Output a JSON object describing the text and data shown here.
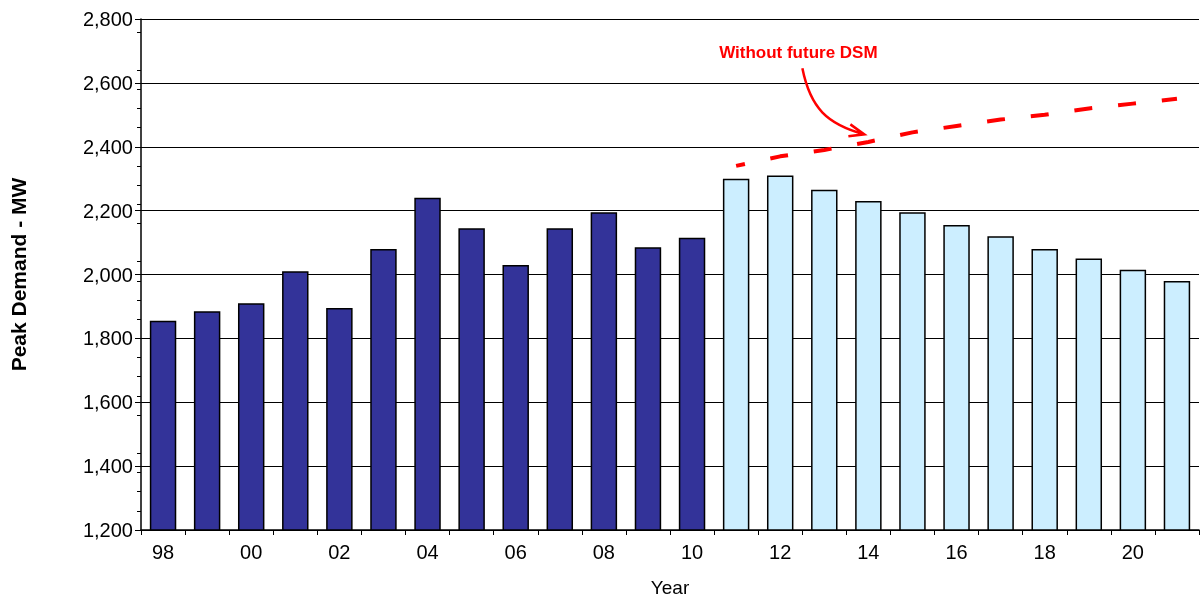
{
  "chart_data": {
    "type": "bar",
    "xlabel": "Year",
    "ylabel": "Peak Demand - MW",
    "categories": [
      "98",
      null,
      "00",
      null,
      "02",
      null,
      "04",
      null,
      "06",
      null,
      "08",
      null,
      "10",
      null,
      "12",
      null,
      "14",
      null,
      "16",
      null,
      "18",
      null,
      "20",
      null
    ],
    "series": [
      {
        "values": [
          1855,
          1885,
          1910,
          2010,
          1895,
          2080,
          2240,
          2145,
          2030,
          2145,
          2195,
          2085,
          2115,
          2300,
          2310,
          2265,
          2230,
          2195,
          2155,
          2120,
          2080,
          2050,
          2015,
          1980
        ],
        "colors": [
          "#333399",
          "#333399",
          "#333399",
          "#333399",
          "#333399",
          "#333399",
          "#333399",
          "#333399",
          "#333399",
          "#333399",
          "#333399",
          "#333399",
          "#333399",
          "#cceeff",
          "#cceeff",
          "#cceeff",
          "#cceeff",
          "#cceeff",
          "#cceeff",
          "#cceeff",
          "#cceeff",
          "#cceeff",
          "#cceeff",
          "#cceeff"
        ]
      },
      {
        "type": "line",
        "color": "#ff0000",
        "line_style": "dashed",
        "marker": "none",
        "values": [
          null,
          null,
          null,
          null,
          null,
          null,
          null,
          null,
          null,
          null,
          null,
          null,
          null,
          2340,
          2370,
          2390,
          2415,
          2445,
          2465,
          2485,
          2500,
          2520,
          2535,
          2550
        ]
      }
    ],
    "annotations": [
      {
        "text": "Without future DSM",
        "x": "14",
        "y": 2420
      }
    ],
    "ylim": [
      1200,
      2800
    ],
    "yticks": [
      {
        "value": 1200,
        "label": "1,200"
      },
      {
        "value": 1400,
        "label": "1,400"
      },
      {
        "value": 1600,
        "label": "1,600"
      },
      {
        "value": 1800,
        "label": "1,800"
      },
      {
        "value": 2000,
        "label": "2,000"
      },
      {
        "value": 2200,
        "label": "2,200"
      },
      {
        "value": 2400,
        "label": "2,400"
      },
      {
        "value": 2600,
        "label": "2,600"
      },
      {
        "value": 2800,
        "label": "2,800"
      }
    ],
    "grid": "y"
  }
}
